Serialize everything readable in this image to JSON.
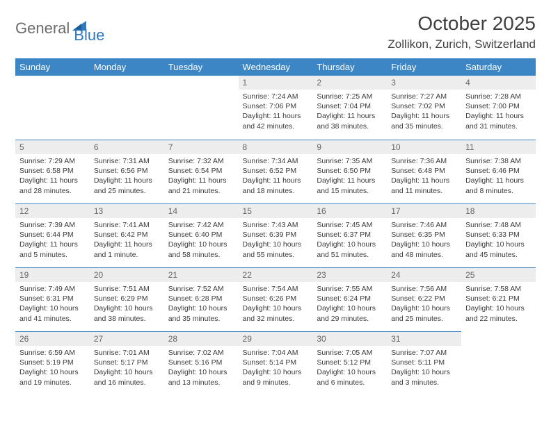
{
  "logo": {
    "part1": "General",
    "part2": "Blue"
  },
  "title": "October 2025",
  "location": "Zollikon, Zurich, Switzerland",
  "colors": {
    "header_bg": "#3d86c6",
    "header_text": "#ffffff",
    "daynum_bg": "#ededed",
    "daynum_text": "#666666",
    "body_text": "#3a3a3a",
    "rule": "#3d86c6",
    "logo_gray": "#6b6b6b",
    "logo_blue": "#2f78c2"
  },
  "weekdays": [
    "Sunday",
    "Monday",
    "Tuesday",
    "Wednesday",
    "Thursday",
    "Friday",
    "Saturday"
  ],
  "weeks": [
    [
      null,
      null,
      null,
      {
        "n": "1",
        "sr": "Sunrise: 7:24 AM",
        "ss": "Sunset: 7:06 PM",
        "d1": "Daylight: 11 hours",
        "d2": "and 42 minutes."
      },
      {
        "n": "2",
        "sr": "Sunrise: 7:25 AM",
        "ss": "Sunset: 7:04 PM",
        "d1": "Daylight: 11 hours",
        "d2": "and 38 minutes."
      },
      {
        "n": "3",
        "sr": "Sunrise: 7:27 AM",
        "ss": "Sunset: 7:02 PM",
        "d1": "Daylight: 11 hours",
        "d2": "and 35 minutes."
      },
      {
        "n": "4",
        "sr": "Sunrise: 7:28 AM",
        "ss": "Sunset: 7:00 PM",
        "d1": "Daylight: 11 hours",
        "d2": "and 31 minutes."
      }
    ],
    [
      {
        "n": "5",
        "sr": "Sunrise: 7:29 AM",
        "ss": "Sunset: 6:58 PM",
        "d1": "Daylight: 11 hours",
        "d2": "and 28 minutes."
      },
      {
        "n": "6",
        "sr": "Sunrise: 7:31 AM",
        "ss": "Sunset: 6:56 PM",
        "d1": "Daylight: 11 hours",
        "d2": "and 25 minutes."
      },
      {
        "n": "7",
        "sr": "Sunrise: 7:32 AM",
        "ss": "Sunset: 6:54 PM",
        "d1": "Daylight: 11 hours",
        "d2": "and 21 minutes."
      },
      {
        "n": "8",
        "sr": "Sunrise: 7:34 AM",
        "ss": "Sunset: 6:52 PM",
        "d1": "Daylight: 11 hours",
        "d2": "and 18 minutes."
      },
      {
        "n": "9",
        "sr": "Sunrise: 7:35 AM",
        "ss": "Sunset: 6:50 PM",
        "d1": "Daylight: 11 hours",
        "d2": "and 15 minutes."
      },
      {
        "n": "10",
        "sr": "Sunrise: 7:36 AM",
        "ss": "Sunset: 6:48 PM",
        "d1": "Daylight: 11 hours",
        "d2": "and 11 minutes."
      },
      {
        "n": "11",
        "sr": "Sunrise: 7:38 AM",
        "ss": "Sunset: 6:46 PM",
        "d1": "Daylight: 11 hours",
        "d2": "and 8 minutes."
      }
    ],
    [
      {
        "n": "12",
        "sr": "Sunrise: 7:39 AM",
        "ss": "Sunset: 6:44 PM",
        "d1": "Daylight: 11 hours",
        "d2": "and 5 minutes."
      },
      {
        "n": "13",
        "sr": "Sunrise: 7:41 AM",
        "ss": "Sunset: 6:42 PM",
        "d1": "Daylight: 11 hours",
        "d2": "and 1 minute."
      },
      {
        "n": "14",
        "sr": "Sunrise: 7:42 AM",
        "ss": "Sunset: 6:40 PM",
        "d1": "Daylight: 10 hours",
        "d2": "and 58 minutes."
      },
      {
        "n": "15",
        "sr": "Sunrise: 7:43 AM",
        "ss": "Sunset: 6:39 PM",
        "d1": "Daylight: 10 hours",
        "d2": "and 55 minutes."
      },
      {
        "n": "16",
        "sr": "Sunrise: 7:45 AM",
        "ss": "Sunset: 6:37 PM",
        "d1": "Daylight: 10 hours",
        "d2": "and 51 minutes."
      },
      {
        "n": "17",
        "sr": "Sunrise: 7:46 AM",
        "ss": "Sunset: 6:35 PM",
        "d1": "Daylight: 10 hours",
        "d2": "and 48 minutes."
      },
      {
        "n": "18",
        "sr": "Sunrise: 7:48 AM",
        "ss": "Sunset: 6:33 PM",
        "d1": "Daylight: 10 hours",
        "d2": "and 45 minutes."
      }
    ],
    [
      {
        "n": "19",
        "sr": "Sunrise: 7:49 AM",
        "ss": "Sunset: 6:31 PM",
        "d1": "Daylight: 10 hours",
        "d2": "and 41 minutes."
      },
      {
        "n": "20",
        "sr": "Sunrise: 7:51 AM",
        "ss": "Sunset: 6:29 PM",
        "d1": "Daylight: 10 hours",
        "d2": "and 38 minutes."
      },
      {
        "n": "21",
        "sr": "Sunrise: 7:52 AM",
        "ss": "Sunset: 6:28 PM",
        "d1": "Daylight: 10 hours",
        "d2": "and 35 minutes."
      },
      {
        "n": "22",
        "sr": "Sunrise: 7:54 AM",
        "ss": "Sunset: 6:26 PM",
        "d1": "Daylight: 10 hours",
        "d2": "and 32 minutes."
      },
      {
        "n": "23",
        "sr": "Sunrise: 7:55 AM",
        "ss": "Sunset: 6:24 PM",
        "d1": "Daylight: 10 hours",
        "d2": "and 29 minutes."
      },
      {
        "n": "24",
        "sr": "Sunrise: 7:56 AM",
        "ss": "Sunset: 6:22 PM",
        "d1": "Daylight: 10 hours",
        "d2": "and 25 minutes."
      },
      {
        "n": "25",
        "sr": "Sunrise: 7:58 AM",
        "ss": "Sunset: 6:21 PM",
        "d1": "Daylight: 10 hours",
        "d2": "and 22 minutes."
      }
    ],
    [
      {
        "n": "26",
        "sr": "Sunrise: 6:59 AM",
        "ss": "Sunset: 5:19 PM",
        "d1": "Daylight: 10 hours",
        "d2": "and 19 minutes."
      },
      {
        "n": "27",
        "sr": "Sunrise: 7:01 AM",
        "ss": "Sunset: 5:17 PM",
        "d1": "Daylight: 10 hours",
        "d2": "and 16 minutes."
      },
      {
        "n": "28",
        "sr": "Sunrise: 7:02 AM",
        "ss": "Sunset: 5:16 PM",
        "d1": "Daylight: 10 hours",
        "d2": "and 13 minutes."
      },
      {
        "n": "29",
        "sr": "Sunrise: 7:04 AM",
        "ss": "Sunset: 5:14 PM",
        "d1": "Daylight: 10 hours",
        "d2": "and 9 minutes."
      },
      {
        "n": "30",
        "sr": "Sunrise: 7:05 AM",
        "ss": "Sunset: 5:12 PM",
        "d1": "Daylight: 10 hours",
        "d2": "and 6 minutes."
      },
      {
        "n": "31",
        "sr": "Sunrise: 7:07 AM",
        "ss": "Sunset: 5:11 PM",
        "d1": "Daylight: 10 hours",
        "d2": "and 3 minutes."
      },
      null
    ]
  ]
}
